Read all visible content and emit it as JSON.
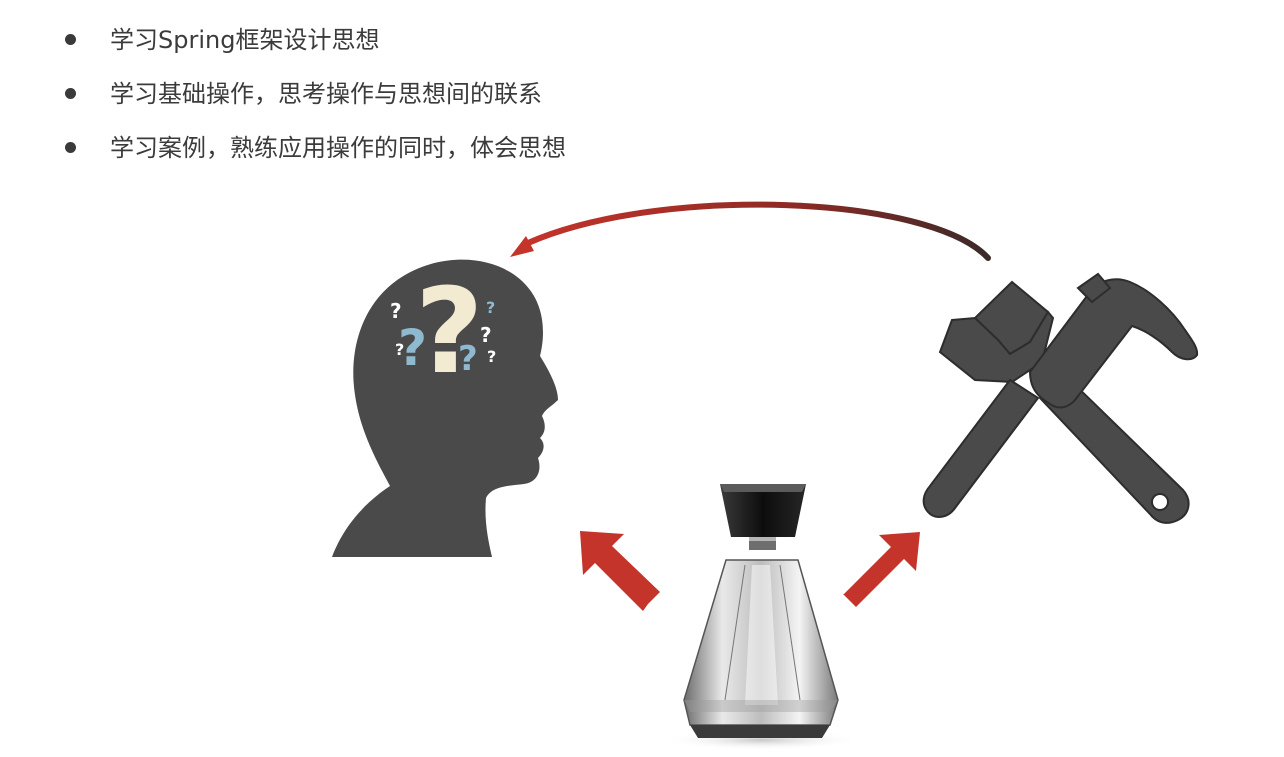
{
  "bullets": [
    {
      "text": "学习Spring框架设计思想"
    },
    {
      "text": "学习基础操作，思考操作与思想间的联系"
    },
    {
      "text": "学习案例，熟练应用操作的同时，体会思想"
    }
  ],
  "icons": {
    "head": "thinking-head-icon",
    "tools": "wrench-hammer-icon",
    "bottle": "perfume-bottle-icon",
    "marks": "question-mark-icon"
  },
  "question_marks": {
    "big": "?",
    "small": "?"
  },
  "colors": {
    "arrow_red": "#c4342a",
    "icon_gray": "#4a4a4a",
    "cream": "#f3ead2",
    "blue": "#8eb9cf",
    "text": "#3b3b3b"
  }
}
